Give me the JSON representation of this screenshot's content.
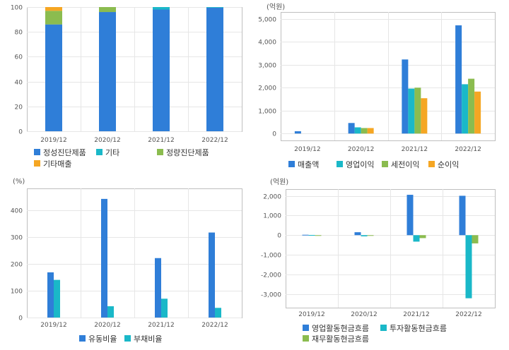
{
  "chart_data": [
    {
      "type": "bar",
      "stacked": true,
      "unit": "",
      "categories": [
        "2019/12",
        "2020/12",
        "2021/12",
        "2022/12"
      ],
      "ylim": [
        0,
        100
      ],
      "yticks": [
        0,
        20,
        40,
        60,
        80,
        100
      ],
      "series": [
        {
          "name": "정성진단제품",
          "color": "#2f7ed8",
          "values": [
            86,
            96,
            98,
            99.5
          ]
        },
        {
          "name": "기타",
          "color": "#1ab8c8",
          "values": [
            0,
            0,
            2,
            0.5
          ]
        },
        {
          "name": "정량진단제품",
          "color": "#8bbc4f",
          "values": [
            11,
            4,
            0,
            0
          ]
        },
        {
          "name": "기타매출",
          "color": "#f5a623",
          "values": [
            3,
            0,
            0,
            0
          ]
        }
      ],
      "legend": "bottom"
    },
    {
      "type": "bar",
      "unit": "(억원)",
      "categories": [
        "2019/12",
        "2020/12",
        "2021/12",
        "2022/12"
      ],
      "ylim": [
        -300,
        5300
      ],
      "yticks": [
        0,
        1000,
        2000,
        3000,
        4000,
        5000
      ],
      "ytick_labels": [
        "0",
        "1,000",
        "2,000",
        "3,000",
        "4,000",
        "5,000"
      ],
      "series": [
        {
          "name": "매출액",
          "color": "#2f7ed8",
          "values": [
            100,
            460,
            3230,
            4720
          ]
        },
        {
          "name": "영업이익",
          "color": "#1ab8c8",
          "values": [
            null,
            270,
            1960,
            2150
          ]
        },
        {
          "name": "세전이익",
          "color": "#8bbc4f",
          "values": [
            null,
            240,
            2000,
            2390
          ]
        },
        {
          "name": "순이익",
          "color": "#f5a623",
          "values": [
            null,
            240,
            1540,
            1830
          ]
        }
      ],
      "legend": "bottom"
    },
    {
      "type": "bar",
      "unit": "(%)",
      "categories": [
        "2019/12",
        "2020/12",
        "2021/12",
        "2022/12"
      ],
      "ylim": [
        0,
        480
      ],
      "yticks": [
        0,
        100,
        200,
        300,
        400
      ],
      "series": [
        {
          "name": "유동비율",
          "color": "#2f7ed8",
          "values": [
            168,
            441,
            221,
            316
          ]
        },
        {
          "name": "부채비율",
          "color": "#1ab8c8",
          "values": [
            140,
            42,
            70,
            36
          ]
        }
      ],
      "legend": "bottom"
    },
    {
      "type": "bar",
      "unit": "(억원)",
      "categories": [
        "2019/12",
        "2020/12",
        "2021/12",
        "2022/12"
      ],
      "ylim": [
        -3700,
        2350
      ],
      "yticks": [
        -3000,
        -2000,
        -1000,
        0,
        1000,
        2000
      ],
      "ytick_labels": [
        "-3,000",
        "-2,000",
        "-1,000",
        "0",
        "1,000",
        "2,000"
      ],
      "series": [
        {
          "name": "영업활동현금흐름",
          "color": "#2f7ed8",
          "values": [
            20,
            150,
            2060,
            2010
          ]
        },
        {
          "name": "투자활동현금흐름",
          "color": "#1ab8c8",
          "values": [
            10,
            -60,
            -330,
            -3220
          ]
        },
        {
          "name": "재무활동현금흐름",
          "color": "#8bbc4f",
          "values": [
            0,
            0,
            -150,
            -420
          ]
        }
      ],
      "legend": "bottom"
    }
  ]
}
